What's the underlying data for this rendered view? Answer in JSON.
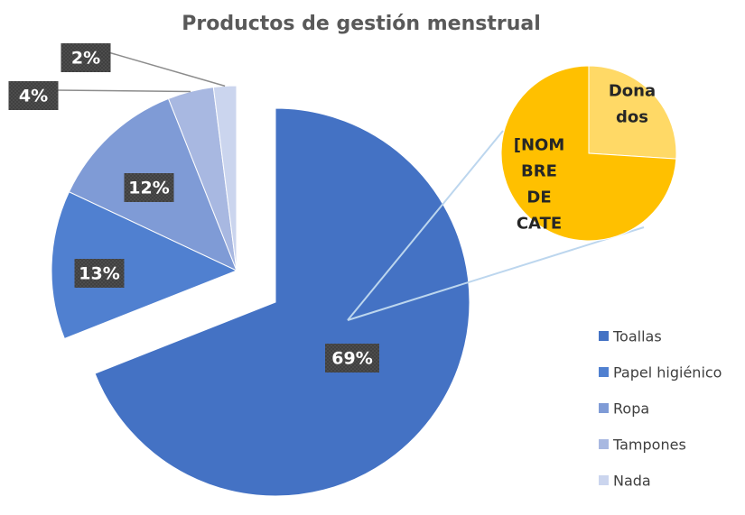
{
  "chart_data": {
    "type": "pie",
    "title": "Productos de gestión menstrual",
    "categories": [
      "Toallas",
      "Papel higiénico",
      "Ropa",
      "Tampones",
      "Nada"
    ],
    "values": [
      69,
      13,
      12,
      4,
      2
    ],
    "value_labels": [
      "69%",
      "13%",
      "12%",
      "4%",
      "2%"
    ],
    "colors": [
      "#4472c4",
      "#5080d0",
      "#7f9bd6",
      "#a8b8e1",
      "#cbd5ee"
    ],
    "secondary": {
      "labels": [
        [
          "Dona",
          "dos"
        ],
        [
          "[NOM",
          "BRE",
          "DE",
          "CATE"
        ]
      ],
      "values": [
        26,
        74
      ],
      "colors": [
        "#ffd966",
        "#ffc000"
      ]
    },
    "legend": "right"
  }
}
